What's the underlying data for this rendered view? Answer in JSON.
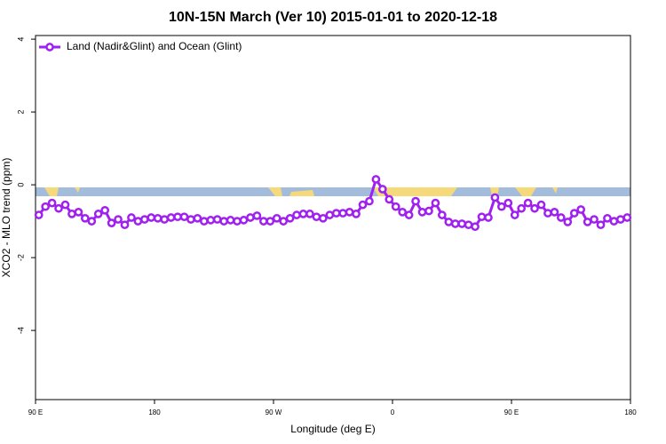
{
  "chart_data": {
    "type": "line",
    "title": "10N-15N March (Ver 10)   2015-01-01 to 2020-12-18",
    "x_label": "Longitude (deg E)",
    "y_label": "XCO2 - MLO trend (ppm)",
    "xlim": [
      90,
      540
    ],
    "xticks": [
      {
        "value": 90,
        "label": "90 E"
      },
      {
        "value": 180,
        "label": "180"
      },
      {
        "value": 270,
        "label": "90 W"
      },
      {
        "value": 360,
        "label": "0"
      },
      {
        "value": 450,
        "label": "90 E"
      },
      {
        "value": 540,
        "label": "180"
      }
    ],
    "ylim": [
      -5.9,
      4.1
    ],
    "yticks": [
      -4,
      -2,
      0,
      2,
      4
    ],
    "legend": "top-left",
    "x": [
      92.5,
      97.5,
      102.5,
      107.5,
      112.5,
      117.5,
      122.5,
      127.5,
      132.5,
      137.5,
      142.5,
      147.5,
      152.5,
      157.5,
      162.5,
      167.5,
      172.5,
      177.5,
      182.5,
      187.5,
      192.5,
      197.5,
      202.5,
      207.5,
      212.5,
      217.5,
      222.5,
      227.5,
      232.5,
      237.5,
      242.5,
      247.5,
      252.5,
      257.5,
      262.5,
      267.5,
      272.5,
      277.5,
      282.5,
      287.5,
      292.5,
      297.5,
      302.5,
      307.5,
      312.5,
      317.5,
      322.5,
      327.5,
      332.5,
      337.5,
      342.5,
      347.5,
      352.5,
      357.5,
      362.5,
      367.5,
      372.5,
      377.5,
      382.5,
      387.5,
      392.5,
      397.5,
      402.5,
      407.5,
      412.5,
      417.5,
      422.5,
      427.5,
      432.5,
      437.5,
      442.5,
      447.5,
      452.5,
      457.5,
      462.5,
      467.5,
      472.5,
      477.5,
      482.5,
      487.5,
      492.5,
      497.5,
      502.5,
      507.5,
      512.5,
      517.5,
      522.5,
      527.5,
      532.5,
      537.5
    ],
    "series": [
      {
        "name": "Land (Nadir&Glint) and Ocean (Glint)",
        "color": "#a020f0",
        "values": [
          -0.83,
          -0.6,
          -0.5,
          -0.65,
          -0.55,
          -0.8,
          -0.75,
          -0.92,
          -1.0,
          -0.8,
          -0.7,
          -1.05,
          -0.95,
          -1.1,
          -0.9,
          -1.0,
          -0.95,
          -0.9,
          -0.92,
          -0.95,
          -0.9,
          -0.88,
          -0.88,
          -0.95,
          -0.92,
          -1.0,
          -0.97,
          -0.95,
          -1.0,
          -0.97,
          -1.0,
          -0.97,
          -0.9,
          -0.85,
          -1.0,
          -1.0,
          -0.92,
          -1.0,
          -0.92,
          -0.83,
          -0.8,
          -0.8,
          -0.88,
          -0.92,
          -0.83,
          -0.78,
          -0.78,
          -0.75,
          -0.8,
          -0.55,
          -0.45,
          0.15,
          -0.12,
          -0.4,
          -0.6,
          -0.75,
          -0.83,
          -0.45,
          -0.75,
          -0.72,
          -0.5,
          -0.83,
          -1.02,
          -1.07,
          -1.07,
          -1.1,
          -1.15,
          -0.88,
          -0.9,
          -0.35,
          -0.6,
          -0.5,
          -0.83,
          -0.65,
          -0.5,
          -0.65,
          -0.55,
          -0.78,
          -0.75,
          -0.9,
          -1.02,
          -0.78,
          -0.68,
          -1.02,
          -0.95,
          -1.1,
          -0.92,
          -1.0,
          -0.95,
          -0.9
        ]
      }
    ]
  }
}
